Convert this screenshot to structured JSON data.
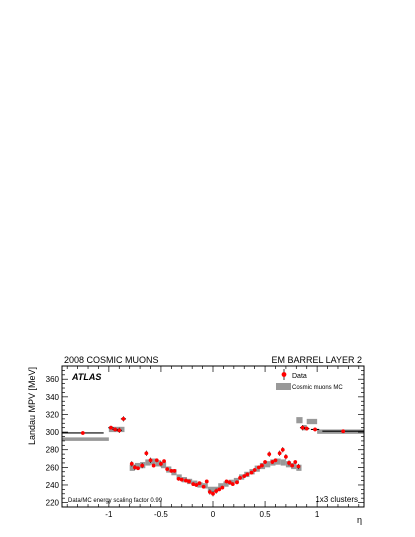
{
  "header": {
    "left": "2008 COSMIC MUONS",
    "right": "EM BARREL LAYER 2"
  },
  "annotations": {
    "experiment": "ATLAS",
    "scaling": "Data/MC energy scaling factor 0.99",
    "clusters": "1x3 clusters"
  },
  "colors": {
    "data": "#ff0000",
    "mc": "#999999",
    "axis": "#000000"
  },
  "chart_data": {
    "type": "scatter",
    "title": "",
    "xlabel": "η",
    "ylabel": "Landau MPV [MeV]",
    "xlim": [
      -1.45,
      1.45
    ],
    "ylim": [
      215,
      375
    ],
    "xticks": [
      -1,
      -0.5,
      0,
      0.5,
      1
    ],
    "xtick_labels": [
      "-1",
      "-0.5",
      "0",
      "0.5",
      "1"
    ],
    "yticks": [
      220,
      240,
      260,
      280,
      300,
      320,
      340,
      360
    ],
    "ytick_labels": [
      "220",
      "240",
      "260",
      "280",
      "300",
      "320",
      "340",
      "360"
    ],
    "grid": false,
    "legend": {
      "placement": "top-right",
      "entries": [
        "Data",
        "Cosmic muons MC"
      ]
    },
    "series": [
      {
        "name": "Data",
        "style": "points-with-errors",
        "points": [
          {
            "x": -1.25,
            "y": 299,
            "err": 2,
            "xerr": 0.2
          },
          {
            "x": -0.98,
            "y": 305,
            "err": 2,
            "xerr": 0.025
          },
          {
            "x": -0.94,
            "y": 303,
            "err": 2,
            "xerr": 0.025
          },
          {
            "x": -0.9,
            "y": 302,
            "err": 3,
            "xerr": 0.025
          },
          {
            "x": -0.86,
            "y": 315,
            "err": 3,
            "xerr": 0.025
          },
          {
            "x": -0.78,
            "y": 264,
            "err": 3
          },
          {
            "x": -0.75,
            "y": 260,
            "err": 3
          },
          {
            "x": -0.72,
            "y": 259,
            "err": 2
          },
          {
            "x": -0.68,
            "y": 262,
            "err": 3
          },
          {
            "x": -0.64,
            "y": 276,
            "err": 3
          },
          {
            "x": -0.6,
            "y": 268,
            "err": 3
          },
          {
            "x": -0.57,
            "y": 262,
            "err": 2
          },
          {
            "x": -0.54,
            "y": 268,
            "err": 2
          },
          {
            "x": -0.5,
            "y": 264,
            "err": 3
          },
          {
            "x": -0.47,
            "y": 267,
            "err": 2
          },
          {
            "x": -0.44,
            "y": 258,
            "err": 2
          },
          {
            "x": -0.4,
            "y": 256,
            "err": 2
          },
          {
            "x": -0.37,
            "y": 256,
            "err": 2
          },
          {
            "x": -0.33,
            "y": 247,
            "err": 2
          },
          {
            "x": -0.3,
            "y": 246,
            "err": 2
          },
          {
            "x": -0.26,
            "y": 245,
            "err": 2
          },
          {
            "x": -0.23,
            "y": 244,
            "err": 2
          },
          {
            "x": -0.19,
            "y": 241,
            "err": 2
          },
          {
            "x": -0.16,
            "y": 240,
            "err": 2
          },
          {
            "x": -0.13,
            "y": 242,
            "err": 2
          },
          {
            "x": -0.09,
            "y": 238,
            "err": 2
          },
          {
            "x": -0.06,
            "y": 244,
            "err": 2
          },
          {
            "x": -0.03,
            "y": 232,
            "err": 3
          },
          {
            "x": 0.0,
            "y": 230,
            "err": 3
          },
          {
            "x": 0.03,
            "y": 233,
            "err": 3
          },
          {
            "x": 0.06,
            "y": 235,
            "err": 2
          },
          {
            "x": 0.09,
            "y": 237,
            "err": 2
          },
          {
            "x": 0.13,
            "y": 244,
            "err": 2
          },
          {
            "x": 0.16,
            "y": 243,
            "err": 2
          },
          {
            "x": 0.19,
            "y": 241,
            "err": 2
          },
          {
            "x": 0.23,
            "y": 243,
            "err": 2
          },
          {
            "x": 0.26,
            "y": 248,
            "err": 2
          },
          {
            "x": 0.3,
            "y": 250,
            "err": 2
          },
          {
            "x": 0.33,
            "y": 252,
            "err": 2
          },
          {
            "x": 0.37,
            "y": 254,
            "err": 2
          },
          {
            "x": 0.4,
            "y": 257,
            "err": 2
          },
          {
            "x": 0.44,
            "y": 260,
            "err": 2
          },
          {
            "x": 0.47,
            "y": 262,
            "err": 2
          },
          {
            "x": 0.5,
            "y": 266,
            "err": 2
          },
          {
            "x": 0.54,
            "y": 275,
            "err": 3
          },
          {
            "x": 0.57,
            "y": 266,
            "err": 2
          },
          {
            "x": 0.6,
            "y": 268,
            "err": 2
          },
          {
            "x": 0.64,
            "y": 276,
            "err": 3
          },
          {
            "x": 0.67,
            "y": 280,
            "err": 3
          },
          {
            "x": 0.7,
            "y": 272,
            "err": 3
          },
          {
            "x": 0.73,
            "y": 265,
            "err": 3
          },
          {
            "x": 0.76,
            "y": 262,
            "err": 2
          },
          {
            "x": 0.79,
            "y": 266,
            "err": 2
          },
          {
            "x": 0.82,
            "y": 261,
            "err": 3
          },
          {
            "x": 0.86,
            "y": 305,
            "err": 3,
            "xerr": 0.025
          },
          {
            "x": 0.9,
            "y": 304,
            "err": 2,
            "xerr": 0.025
          },
          {
            "x": 0.98,
            "y": 303,
            "err": 2,
            "xerr": 0.04
          },
          {
            "x": 1.25,
            "y": 301,
            "err": 2,
            "xerr": 0.2
          }
        ]
      },
      {
        "name": "Cosmic muons MC",
        "style": "bands",
        "bands": [
          {
            "x0": -1.45,
            "x1": -1.0,
            "ylo": 290,
            "yhi": 294
          },
          {
            "x0": -1.0,
            "x1": -0.85,
            "ylo": 300,
            "yhi": 306
          },
          {
            "x0": -0.8,
            "x1": -0.75,
            "ylo": 256,
            "yhi": 263
          },
          {
            "x0": -0.75,
            "x1": -0.7,
            "ylo": 258,
            "yhi": 265
          },
          {
            "x0": -0.7,
            "x1": -0.65,
            "ylo": 259,
            "yhi": 266
          },
          {
            "x0": -0.65,
            "x1": -0.6,
            "ylo": 262,
            "yhi": 269
          },
          {
            "x0": -0.6,
            "x1": -0.55,
            "ylo": 263,
            "yhi": 270
          },
          {
            "x0": -0.55,
            "x1": -0.5,
            "ylo": 261,
            "yhi": 268
          },
          {
            "x0": -0.5,
            "x1": -0.45,
            "ylo": 259,
            "yhi": 266
          },
          {
            "x0": -0.45,
            "x1": -0.4,
            "ylo": 254,
            "yhi": 261
          },
          {
            "x0": -0.4,
            "x1": -0.35,
            "ylo": 251,
            "yhi": 258
          },
          {
            "x0": -0.35,
            "x1": -0.3,
            "ylo": 246,
            "yhi": 252
          },
          {
            "x0": -0.3,
            "x1": -0.25,
            "ylo": 243,
            "yhi": 249
          },
          {
            "x0": -0.25,
            "x1": -0.2,
            "ylo": 241,
            "yhi": 247
          },
          {
            "x0": -0.2,
            "x1": -0.15,
            "ylo": 239,
            "yhi": 245
          },
          {
            "x0": -0.15,
            "x1": -0.1,
            "ylo": 237,
            "yhi": 243
          },
          {
            "x0": -0.1,
            "x1": -0.05,
            "ylo": 236,
            "yhi": 242
          },
          {
            "x0": -0.05,
            "x1": 0.0,
            "ylo": 232,
            "yhi": 238
          },
          {
            "x0": 0.0,
            "x1": 0.05,
            "ylo": 232,
            "yhi": 238
          },
          {
            "x0": 0.05,
            "x1": 0.1,
            "ylo": 236,
            "yhi": 242
          },
          {
            "x0": 0.1,
            "x1": 0.15,
            "ylo": 238,
            "yhi": 244
          },
          {
            "x0": 0.15,
            "x1": 0.2,
            "ylo": 240,
            "yhi": 246
          },
          {
            "x0": 0.2,
            "x1": 0.25,
            "ylo": 242,
            "yhi": 248
          },
          {
            "x0": 0.25,
            "x1": 0.3,
            "ylo": 246,
            "yhi": 252
          },
          {
            "x0": 0.3,
            "x1": 0.35,
            "ylo": 249,
            "yhi": 255
          },
          {
            "x0": 0.35,
            "x1": 0.4,
            "ylo": 252,
            "yhi": 258
          },
          {
            "x0": 0.4,
            "x1": 0.45,
            "ylo": 255,
            "yhi": 262
          },
          {
            "x0": 0.45,
            "x1": 0.5,
            "ylo": 258,
            "yhi": 265
          },
          {
            "x0": 0.5,
            "x1": 0.55,
            "ylo": 260,
            "yhi": 267
          },
          {
            "x0": 0.55,
            "x1": 0.6,
            "ylo": 262,
            "yhi": 269
          },
          {
            "x0": 0.6,
            "x1": 0.65,
            "ylo": 263,
            "yhi": 270
          },
          {
            "x0": 0.65,
            "x1": 0.7,
            "ylo": 262,
            "yhi": 269
          },
          {
            "x0": 0.7,
            "x1": 0.75,
            "ylo": 260,
            "yhi": 267
          },
          {
            "x0": 0.75,
            "x1": 0.8,
            "ylo": 258,
            "yhi": 265
          },
          {
            "x0": 0.8,
            "x1": 0.85,
            "ylo": 256,
            "yhi": 263
          },
          {
            "x0": 0.8,
            "x1": 0.86,
            "ylo": 310,
            "yhi": 317
          },
          {
            "x0": 0.86,
            "x1": 0.9,
            "ylo": 302,
            "yhi": 308
          },
          {
            "x0": 0.9,
            "x1": 1.0,
            "ylo": 309,
            "yhi": 315
          },
          {
            "x0": 1.0,
            "x1": 1.45,
            "ylo": 298,
            "yhi": 303
          }
        ]
      }
    ]
  }
}
